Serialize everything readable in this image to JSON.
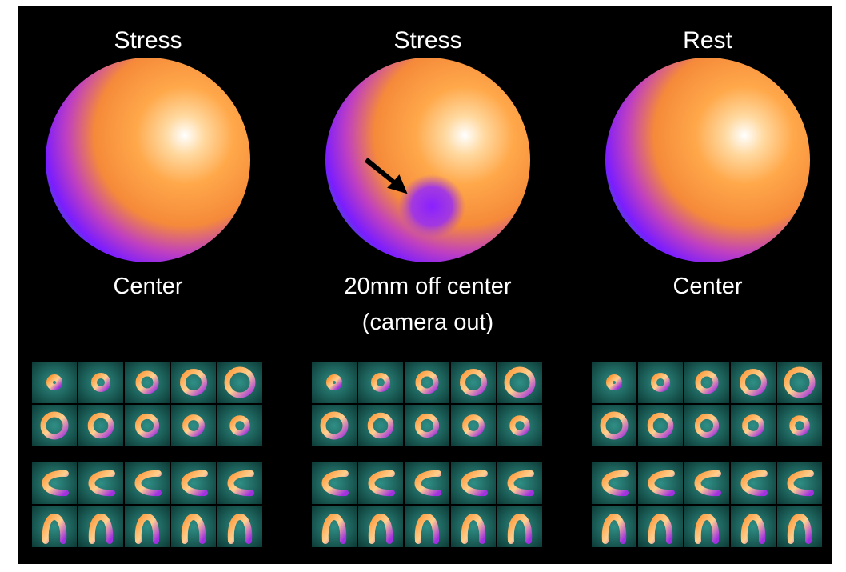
{
  "panels": [
    {
      "title": "Stress",
      "caption": [
        "Center"
      ]
    },
    {
      "title": "Stress",
      "caption": [
        "20mm off center",
        "(camera out)"
      ]
    },
    {
      "title": "Rest",
      "caption": [
        "Center"
      ]
    }
  ]
}
